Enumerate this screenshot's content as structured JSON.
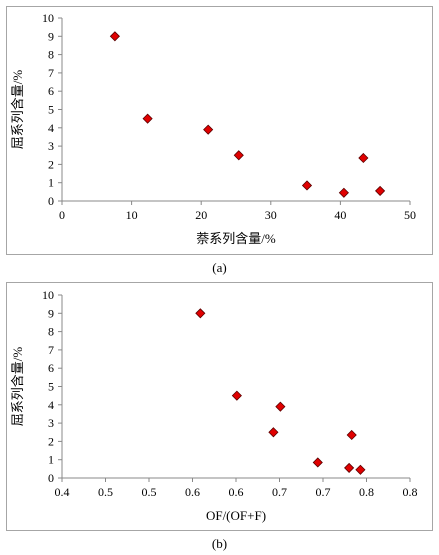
{
  "chart_data": [
    {
      "type": "scatter",
      "xlabel": "萘系列含量/%",
      "ylabel": "屈系列含量/%",
      "xlim": [
        0,
        50
      ],
      "ylim": [
        0,
        10
      ],
      "xticks": [
        0,
        10,
        20,
        30,
        40,
        50
      ],
      "yticks": [
        0,
        1,
        2,
        3,
        4,
        5,
        6,
        7,
        8,
        9,
        10
      ],
      "xtick_labels": [
        "0",
        "10",
        "20",
        "30",
        "40",
        "50"
      ],
      "ytick_labels": [
        "0",
        "1",
        "2",
        "3",
        "4",
        "5",
        "6",
        "7",
        "8",
        "9",
        "10"
      ],
      "marker": "diamond",
      "marker_color": "#e00000",
      "grid": false,
      "points": [
        {
          "x": 7.6,
          "y": 9.0
        },
        {
          "x": 12.3,
          "y": 4.5
        },
        {
          "x": 21.0,
          "y": 3.9
        },
        {
          "x": 25.4,
          "y": 2.5
        },
        {
          "x": 35.2,
          "y": 0.85
        },
        {
          "x": 40.5,
          "y": 0.45
        },
        {
          "x": 43.3,
          "y": 2.35
        },
        {
          "x": 45.7,
          "y": 0.55
        }
      ]
    },
    {
      "type": "scatter",
      "xlabel": "OF/(OF+F)",
      "ylabel": "屈系列含量/%",
      "xlim": [
        0.4,
        0.8
      ],
      "ylim": [
        0,
        10
      ],
      "xticks": [
        0.4,
        0.45,
        0.5,
        0.55,
        0.6,
        0.65,
        0.7,
        0.75,
        0.8
      ],
      "yticks": [
        0,
        1,
        2,
        3,
        4,
        5,
        6,
        7,
        8,
        9,
        10
      ],
      "xtick_labels": [
        "0.4",
        "0.5",
        "0.5",
        "0.6",
        "0.6",
        "0.7",
        "0.7",
        "0.8",
        "0.8"
      ],
      "ytick_labels": [
        "0",
        "1",
        "2",
        "3",
        "4",
        "5",
        "6",
        "7",
        "8",
        "9",
        "10"
      ],
      "marker": "diamond",
      "marker_color": "#e00000",
      "grid": false,
      "points": [
        {
          "x": 0.559,
          "y": 9.0
        },
        {
          "x": 0.601,
          "y": 4.5
        },
        {
          "x": 0.643,
          "y": 2.5
        },
        {
          "x": 0.651,
          "y": 3.9
        },
        {
          "x": 0.694,
          "y": 0.85
        },
        {
          "x": 0.743,
          "y": 0.45
        },
        {
          "x": 0.73,
          "y": 0.55
        },
        {
          "x": 0.733,
          "y": 2.35
        }
      ]
    }
  ],
  "captions": {
    "a": "(a)",
    "b": "(b)"
  }
}
